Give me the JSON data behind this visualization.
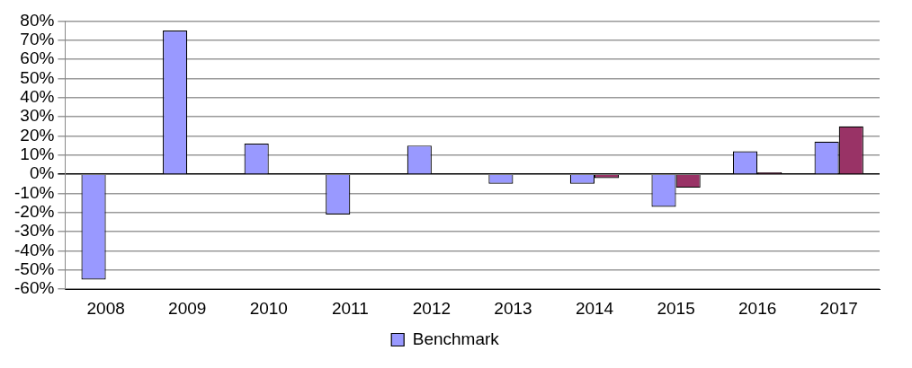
{
  "chart_data": {
    "type": "bar",
    "categories": [
      "2008",
      "2009",
      "2010",
      "2011",
      "2012",
      "2013",
      "2014",
      "2015",
      "2016",
      "2017"
    ],
    "series": [
      {
        "name": "Benchmark",
        "color": "#9999ff",
        "values": [
          -55,
          75,
          16,
          -21,
          15,
          -5,
          -5,
          -17,
          12,
          17
        ]
      },
      {
        "color": "#993366",
        "values": [
          null,
          null,
          null,
          null,
          null,
          null,
          -2,
          -7,
          1,
          25
        ]
      }
    ],
    "ylim": [
      -60,
      80
    ],
    "yticks": [
      {
        "value": -60,
        "label": "-60%"
      },
      {
        "value": -50,
        "label": "-50%"
      },
      {
        "value": -40,
        "label": "-40%"
      },
      {
        "value": -30,
        "label": "-30%"
      },
      {
        "value": -20,
        "label": "-20%"
      },
      {
        "value": -10,
        "label": "-10%"
      },
      {
        "value": 0,
        "label": "0%"
      },
      {
        "value": 10,
        "label": "10%"
      },
      {
        "value": 20,
        "label": "20%"
      },
      {
        "value": 30,
        "label": "30%"
      },
      {
        "value": 40,
        "label": "40%"
      },
      {
        "value": 50,
        "label": "50%"
      },
      {
        "value": 60,
        "label": "60%"
      },
      {
        "value": 70,
        "label": "70%"
      },
      {
        "value": 80,
        "label": "80%"
      }
    ],
    "grid": "y",
    "legend": "bottom"
  }
}
